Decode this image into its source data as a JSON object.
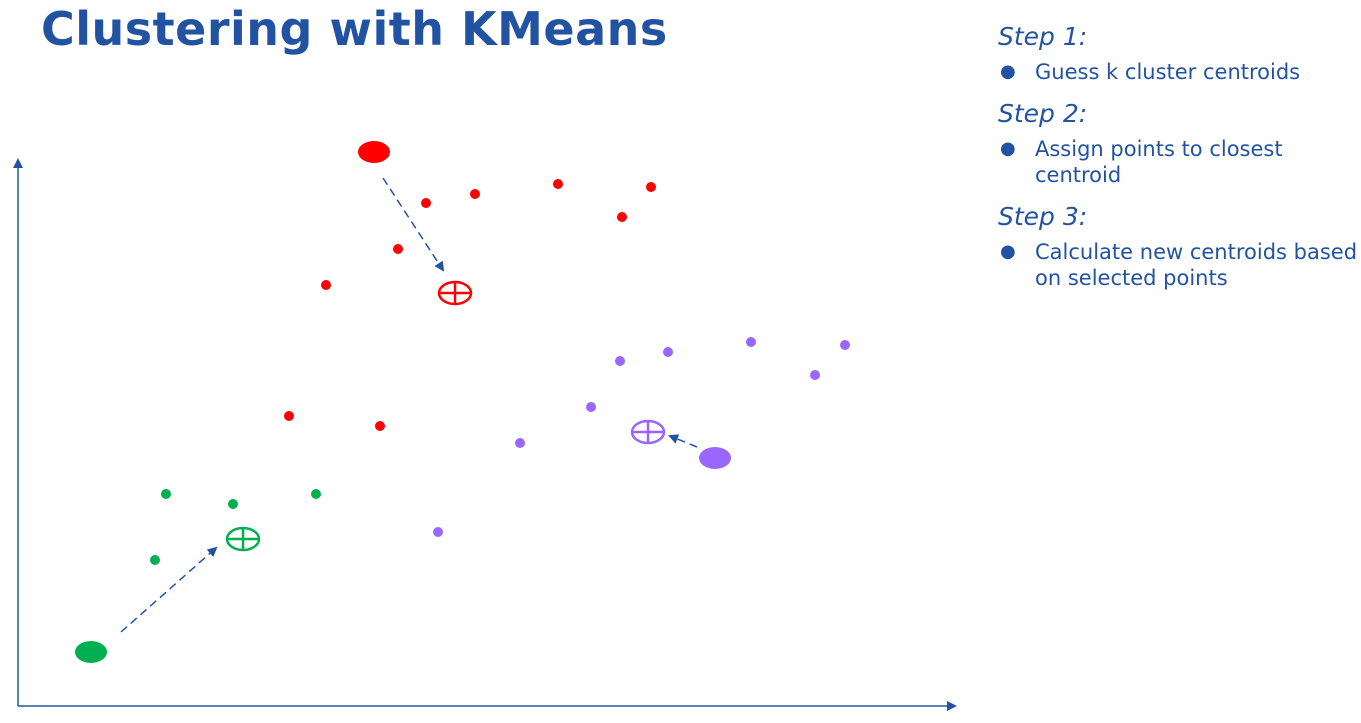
{
  "title": "Clustering with KMeans",
  "steps": [
    {
      "label": "Step 1",
      "bullet": "Guess k cluster centroids"
    },
    {
      "label": "Step 2",
      "bullet": "Assign points to closest centroid"
    },
    {
      "label": "Step 3",
      "bullet": "Calculate new centroids based on selected points"
    }
  ],
  "colors": {
    "text": "#2253a3",
    "red": "#ff0000",
    "purple": "#9966ff",
    "green": "#00b050",
    "arrow": "#2253a3"
  }
}
